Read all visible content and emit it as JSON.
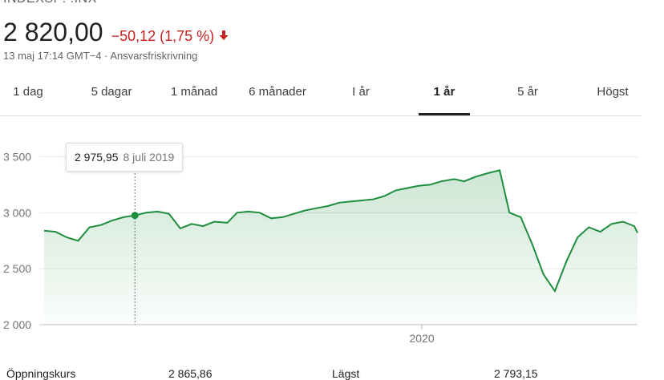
{
  "header": {
    "ticker": "INDEXSP: .INX",
    "price": "2 820,00",
    "change": "−50,12 (1,75 %)",
    "change_color": "#c5221f",
    "direction_icon": "arrow-down-icon",
    "meta": "13 maj 17:14 GMT−4 · Ansvarsfriskrivning"
  },
  "tabs": [
    {
      "label": "1 dag"
    },
    {
      "label": "5 dagar"
    },
    {
      "label": "1 månad"
    },
    {
      "label": "6 månader"
    },
    {
      "label": "I år"
    },
    {
      "label": "1 år"
    },
    {
      "label": "5 år"
    },
    {
      "label": "Högst"
    }
  ],
  "active_tab": "1 år",
  "tooltip": {
    "value": "2 975,95",
    "date": "8 juli 2019"
  },
  "stats": [
    {
      "label": "Öppningskurs",
      "value": "2 865,86"
    },
    {
      "label": "Lägst",
      "value": "2 793,15"
    }
  ],
  "chart_data": {
    "type": "area",
    "line_color": "#1e8e3e",
    "grid": true,
    "ylim": [
      2000,
      3600
    ],
    "yticks": [
      {
        "value": 2000,
        "label": "2 000"
      },
      {
        "value": 2500,
        "label": "2 500"
      },
      {
        "value": 3000,
        "label": "3 000"
      },
      {
        "value": 3500,
        "label": "3 500"
      }
    ],
    "xlim": [
      "2019-05-13",
      "2020-05-13"
    ],
    "xticks": [
      {
        "date": "2020-01-01",
        "label": "2020"
      }
    ],
    "highlight": {
      "date": "2019-07-08",
      "value": 2975.95
    },
    "series": [
      {
        "x": [
          "2019-05-13",
          "2019-05-20",
          "2019-05-27",
          "2019-06-03",
          "2019-06-10",
          "2019-06-17",
          "2019-06-24",
          "2019-07-01",
          "2019-07-08",
          "2019-07-15",
          "2019-07-22",
          "2019-07-29",
          "2019-08-05",
          "2019-08-12",
          "2019-08-19",
          "2019-08-26",
          "2019-09-03",
          "2019-09-09",
          "2019-09-16",
          "2019-09-23",
          "2019-09-30",
          "2019-10-07",
          "2019-10-14",
          "2019-10-21",
          "2019-10-28",
          "2019-11-04",
          "2019-11-11",
          "2019-11-18",
          "2019-11-25",
          "2019-12-02",
          "2019-12-09",
          "2019-12-16",
          "2019-12-23",
          "2019-12-30",
          "2020-01-06",
          "2020-01-13",
          "2020-01-21",
          "2020-01-27",
          "2020-02-03",
          "2020-02-10",
          "2020-02-18",
          "2020-02-24",
          "2020-03-02",
          "2020-03-09",
          "2020-03-16",
          "2020-03-23",
          "2020-03-30",
          "2020-04-06",
          "2020-04-13",
          "2020-04-20",
          "2020-04-27",
          "2020-05-04",
          "2020-05-11",
          "2020-05-13"
        ],
        "values": [
          2840,
          2830,
          2780,
          2750,
          2870,
          2890,
          2930,
          2960,
          2976,
          3000,
          3010,
          2990,
          2860,
          2900,
          2880,
          2920,
          2910,
          3000,
          3010,
          3000,
          2950,
          2960,
          2990,
          3020,
          3040,
          3060,
          3090,
          3100,
          3110,
          3120,
          3150,
          3200,
          3220,
          3240,
          3250,
          3280,
          3300,
          3280,
          3320,
          3350,
          3380,
          3000,
          2960,
          2720,
          2450,
          2300,
          2560,
          2780,
          2870,
          2830,
          2900,
          2920,
          2880,
          2820
        ]
      }
    ]
  }
}
